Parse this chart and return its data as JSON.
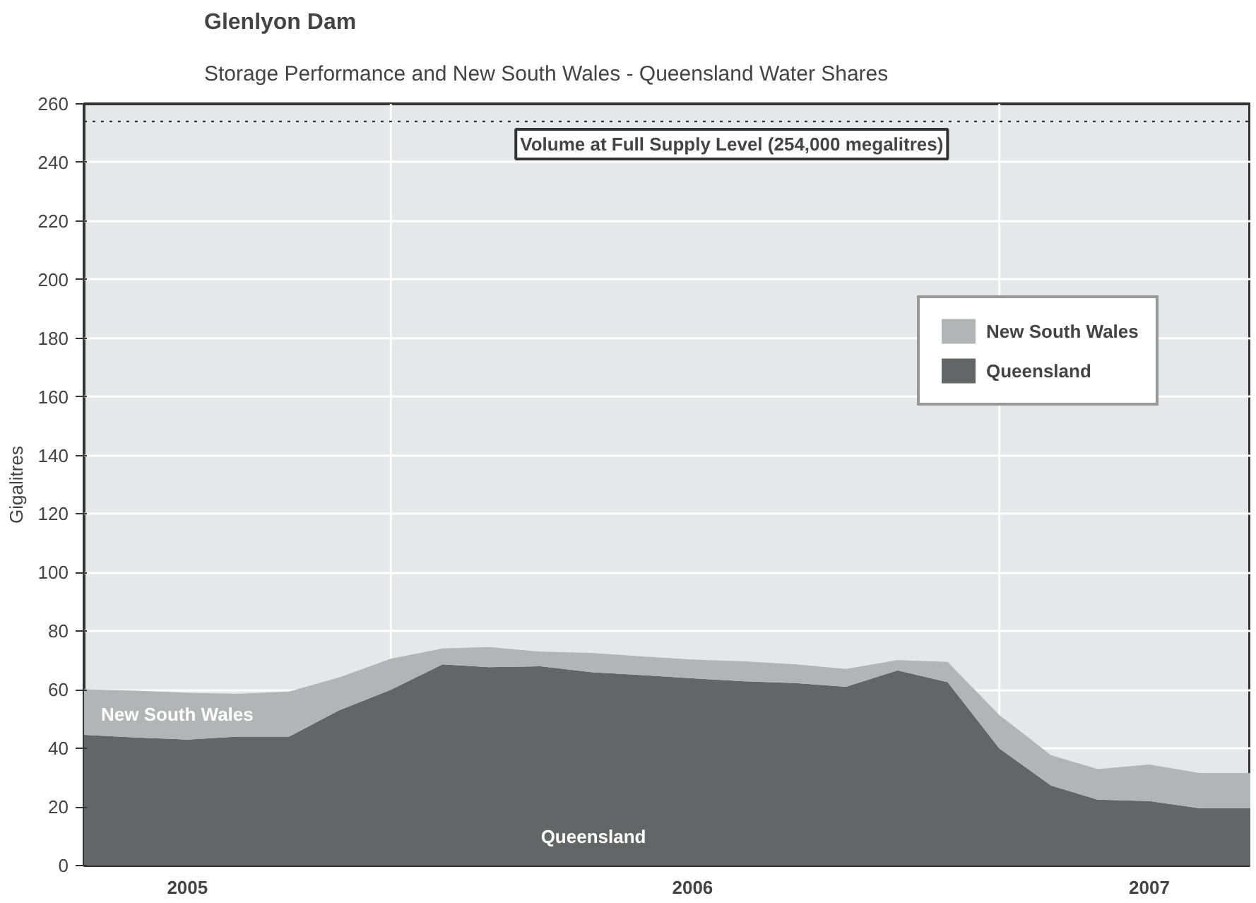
{
  "chart_data": {
    "type": "area",
    "title": "Glenlyon Dam",
    "subtitle": "Storage Performance and New South Wales - Queensland Water Shares",
    "ylabel": "Gigalitres",
    "x": [
      "2005-07",
      "2005-08",
      "2005-09",
      "2005-10",
      "2005-11",
      "2005-12",
      "2006-01",
      "2006-02",
      "2006-03",
      "2006-04",
      "2006-05",
      "2006-06",
      "2006-07",
      "2006-08",
      "2006-09",
      "2006-10",
      "2006-11",
      "2006-12",
      "2007-01",
      "2007-02",
      "2007-03",
      "2007-04",
      "2007-05",
      "2007-06"
    ],
    "stacked": true,
    "series": [
      {
        "name": "Queensland",
        "color": "#646567",
        "values": [
          44.6,
          43.7,
          43.0,
          44.0,
          44.0,
          53.0,
          60.0,
          68.7,
          67.7,
          68.0,
          66.0,
          65.0,
          63.9,
          62.9,
          62.3,
          61.0,
          66.6,
          62.6,
          40.0,
          27.3,
          22.5,
          22.0,
          19.6,
          19.6
        ]
      },
      {
        "name": "New South Wales",
        "color": "#b3b4b6",
        "values": [
          15.6,
          16.0,
          16.0,
          14.6,
          15.4,
          11.2,
          10.6,
          5.4,
          6.9,
          5.0,
          6.6,
          6.4,
          6.4,
          6.8,
          6.4,
          6.1,
          3.5,
          6.9,
          11.4,
          10.4,
          10.4,
          12.5,
          12.0,
          12.0
        ]
      }
    ],
    "xlim": [
      "2005-07",
      "2007-06"
    ],
    "xticks": [
      {
        "value": "2005-09",
        "label": "2005"
      },
      {
        "value": "2006-07",
        "label": "2006"
      },
      {
        "value": "2007-04",
        "label": "2007"
      }
    ],
    "ylim": [
      0,
      260
    ],
    "yticks": [
      0,
      20,
      40,
      60,
      80,
      100,
      120,
      140,
      160,
      180,
      200,
      220,
      240,
      260
    ],
    "grid": "y",
    "legend": "top right",
    "ref_lines": [
      {
        "axis": "y",
        "value": 254,
        "label": "Volume at Full Supply Level (254,000 megalitres)",
        "color": "#333333",
        "line_style": "dotted"
      },
      {
        "axis": "x",
        "value": "2006-01",
        "color": "#ffffff",
        "line_style": "solid"
      },
      {
        "axis": "x",
        "value": "2007-01",
        "color": "#ffffff",
        "line_style": "solid"
      }
    ]
  }
}
